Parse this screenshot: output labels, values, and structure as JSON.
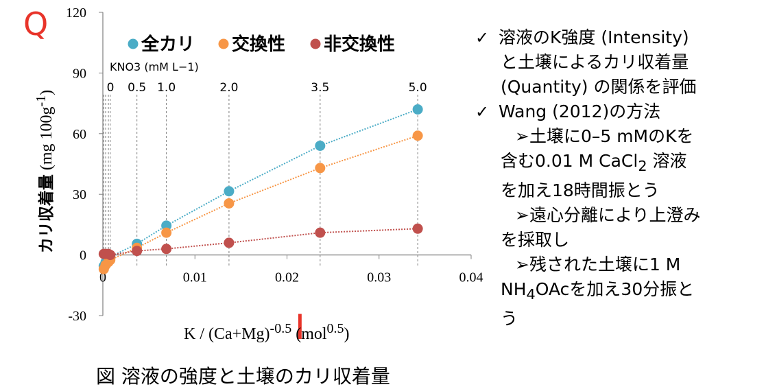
{
  "chart_data": {
    "type": "scatter",
    "title": "",
    "corner_letter_y": "Q",
    "corner_letter_x": "I",
    "ylabel": "カリ収着量",
    "ylabel_unit": "(mg 100g-1)",
    "xlabel": "K / (Ca+Mg)-0.5 (mol0.5)",
    "xlim": [
      0,
      0.04
    ],
    "ylim": [
      -30,
      120
    ],
    "x_ticks": [
      "0",
      "0.01",
      "0.02",
      "0.03",
      "0.04"
    ],
    "y_ticks": [
      "-30",
      "0",
      "30",
      "60",
      "90",
      "120"
    ],
    "legend_position": "top",
    "grid": false,
    "kno3_axis_label": "KNO3 (mM L−1)",
    "kno3_levels": [
      {
        "label": "0",
        "x": 0.0006
      },
      {
        "label": "0.5",
        "x": 0.0037
      },
      {
        "label": "1.0",
        "x": 0.0069
      },
      {
        "label": "2.0",
        "x": 0.0137
      },
      {
        "label": "3.5",
        "x": 0.0236
      },
      {
        "label": "5.0",
        "x": 0.0342
      }
    ],
    "series": [
      {
        "name": "全カリ",
        "color": "#4bacc6",
        "x": [
          0.0001,
          0.0003,
          0.0006,
          0.0008,
          0.0037,
          0.0069,
          0.0137,
          0.0236,
          0.0342
        ],
        "y": [
          -5.5,
          -3.5,
          -2,
          -1,
          5.5,
          14.5,
          31.5,
          54,
          72
        ]
      },
      {
        "name": "交換性",
        "color": "#f79646",
        "x": [
          0.0001,
          0.0003,
          0.0006,
          0.0008,
          0.0037,
          0.0069,
          0.0137,
          0.0236,
          0.0342
        ],
        "y": [
          -7,
          -5,
          -3.5,
          -2.5,
          3.5,
          11,
          25.5,
          43,
          59
        ]
      },
      {
        "name": "非交換性",
        "color": "#c0504d",
        "x": [
          0.0001,
          0.0003,
          0.0006,
          0.0008,
          0.0037,
          0.0069,
          0.0137,
          0.0236,
          0.0342
        ],
        "y": [
          0.5,
          0.5,
          0.5,
          0,
          2,
          3,
          6,
          11,
          13
        ]
      }
    ]
  },
  "caption": "図 溶液の強度と土壌のカリ収着量",
  "notes": [
    {
      "kind": "check",
      "lines": [
        "溶液のK強度 (Intensity)",
        "と土壌によるカリ収着量",
        "(Quantity) の関係を評価"
      ]
    },
    {
      "kind": "check",
      "lines": [
        "Wang (2012)の方法"
      ]
    },
    {
      "kind": "sub",
      "lines": [
        "➢土壌に0–5 mMのKを",
        "含む0.01 M CaCl2 溶液",
        "を加え18時間振とう"
      ]
    },
    {
      "kind": "sub",
      "lines": [
        "➢遠心分離により上澄み",
        "を採取し"
      ]
    },
    {
      "kind": "sub",
      "lines": [
        "➢残された土壌に1 M",
        "NH4OAcを加え30分振と",
        "う"
      ]
    }
  ]
}
